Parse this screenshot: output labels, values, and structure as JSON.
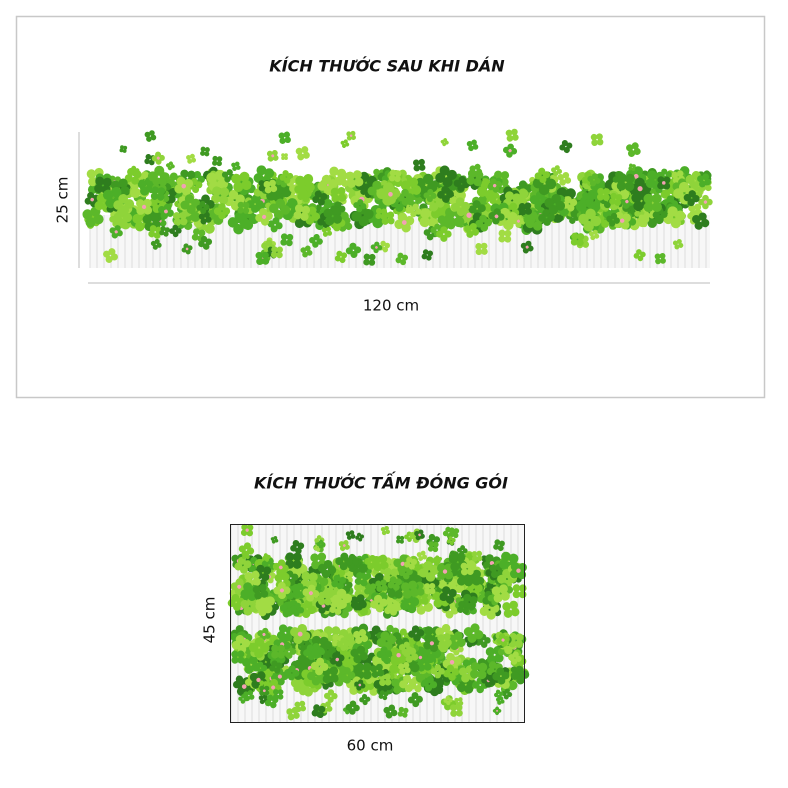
{
  "top": {
    "title": "KÍCH THƯỚC SAU KHI DÁN",
    "height": "25 cm",
    "width": "120 cm"
  },
  "bottom": {
    "title": "KÍCH THƯỚC TẤM ĐÓNG GÓI",
    "height": "45 cm",
    "width": "60 cm"
  }
}
